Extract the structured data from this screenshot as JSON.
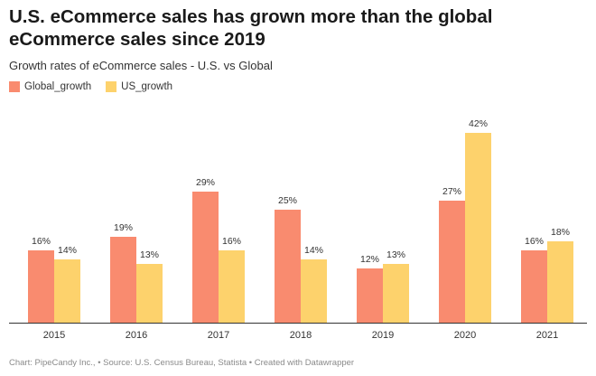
{
  "header": {
    "title": "U.S. eCommerce sales has grown more than the global eCommerce sales since 2019",
    "subtitle": "Growth rates of eCommerce sales - U.S. vs Global"
  },
  "footer": {
    "credit": "Chart: PipeCandy Inc., • Source: U.S. Census Bureau, Statista • Created with Datawrapper"
  },
  "chart_data": {
    "type": "bar",
    "title": "U.S. eCommerce sales has grown more than the global eCommerce sales since 2019",
    "subtitle": "Growth rates of eCommerce sales - U.S. vs Global",
    "categories": [
      "2015",
      "2016",
      "2017",
      "2018",
      "2019",
      "2020",
      "2021"
    ],
    "series": [
      {
        "name": "Global_growth",
        "color": "#f98b6f",
        "values": [
          16,
          19,
          29,
          25,
          12,
          27,
          16
        ],
        "labels": [
          "16%",
          "19%",
          "29%",
          "25%",
          "12%",
          "27%",
          "16%"
        ]
      },
      {
        "name": "US_growth",
        "color": "#fdd26c",
        "values": [
          14,
          13,
          16,
          14,
          13,
          42,
          18
        ],
        "labels": [
          "14%",
          "13%",
          "16%",
          "14%",
          "13%",
          "42%",
          "18%"
        ]
      }
    ],
    "xlabel": "",
    "ylabel": "",
    "ylim": [
      0,
      42
    ],
    "grid": false,
    "legend": "top-left"
  }
}
